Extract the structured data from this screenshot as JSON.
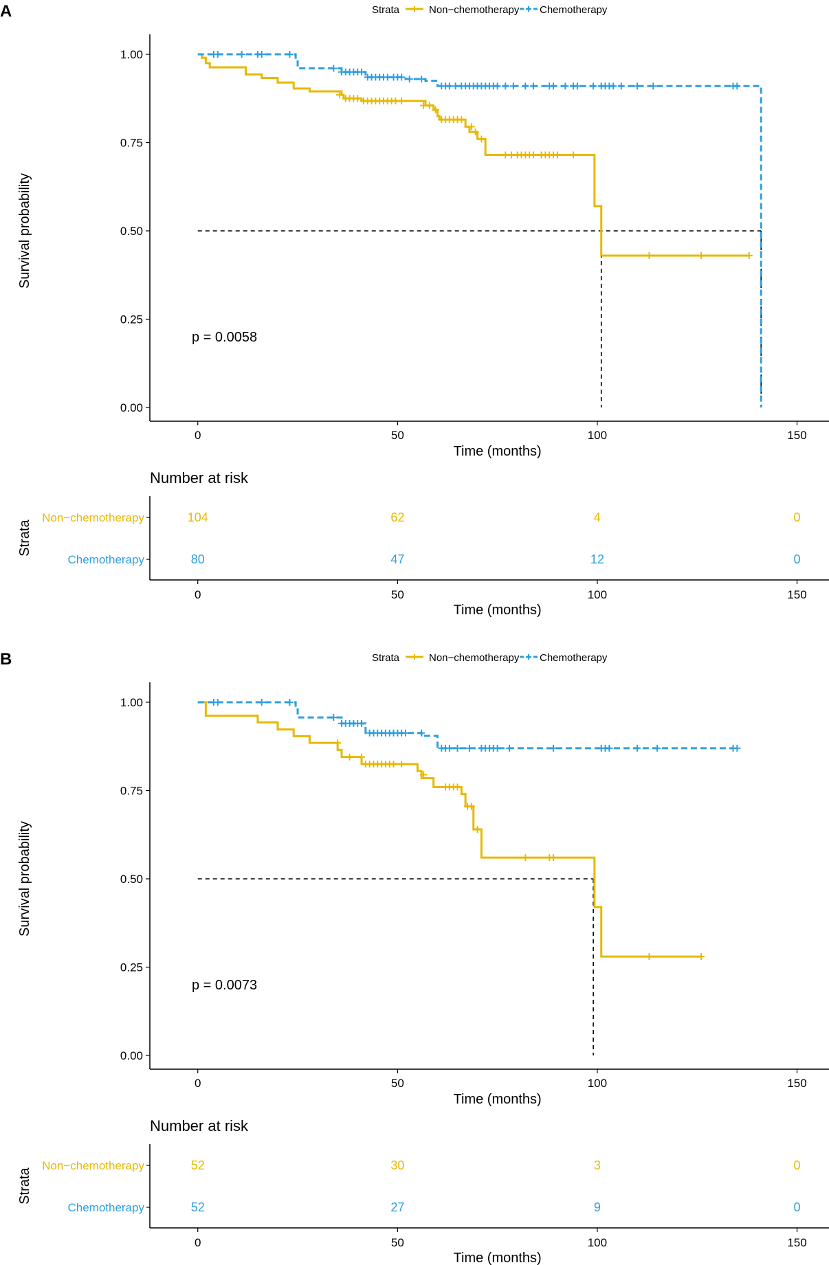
{
  "chart_data": [
    {
      "type": "line",
      "panel_label": "A",
      "legend": {
        "title": "Strata",
        "entries": [
          "Non−chemotherapy",
          "Chemotherapy"
        ],
        "placement": "top-center"
      },
      "xlabel": "Time (months)",
      "ylabel": "Survival probability",
      "xlim": [
        -12,
        158
      ],
      "ylim": [
        0,
        1
      ],
      "xticks": [
        "0",
        "50",
        "100",
        "150"
      ],
      "xtick_values": [
        0,
        50,
        100,
        150
      ],
      "yticks": [
        "0.00",
        "0.25",
        "0.50",
        "0.75",
        "1.00"
      ],
      "ytick_values": [
        0,
        0.25,
        0.5,
        0.75,
        1
      ],
      "pvalue": "p = 0.0058",
      "median_lines": [
        {
          "x1": 0,
          "x2": 141,
          "y": 0.5
        },
        {
          "x": 101,
          "y": 0.5
        },
        {
          "x": 141,
          "y": 0.5
        }
      ],
      "series": [
        {
          "name": "Non−chemotherapy",
          "color": "#E7B800",
          "dash": "solid",
          "steps": [
            [
              0,
              1.0
            ],
            [
              1,
              0.99
            ],
            [
              2,
              0.975
            ],
            [
              3,
              0.963
            ],
            [
              12,
              0.943
            ],
            [
              16,
              0.933
            ],
            [
              20,
              0.92
            ],
            [
              24,
              0.903
            ],
            [
              28,
              0.895
            ],
            [
              36,
              0.885
            ],
            [
              36.5,
              0.875
            ],
            [
              41,
              0.868
            ],
            [
              57,
              0.855
            ],
            [
              59,
              0.843
            ],
            [
              60,
              0.825
            ],
            [
              60.5,
              0.815
            ],
            [
              67,
              0.795
            ],
            [
              68,
              0.78
            ],
            [
              70,
              0.76
            ],
            [
              72,
              0.715
            ],
            [
              99,
              0.715
            ],
            [
              99.3,
              0.57
            ],
            [
              101,
              0.43
            ],
            [
              138,
              0.43
            ]
          ],
          "censors": [
            [
              35.5,
              0.885
            ],
            [
              37,
              0.875
            ],
            [
              38,
              0.875
            ],
            [
              39,
              0.875
            ],
            [
              40,
              0.875
            ],
            [
              41.5,
              0.868
            ],
            [
              42.5,
              0.868
            ],
            [
              43.5,
              0.868
            ],
            [
              44.5,
              0.868
            ],
            [
              45.5,
              0.868
            ],
            [
              46.5,
              0.868
            ],
            [
              47.5,
              0.868
            ],
            [
              48.5,
              0.868
            ],
            [
              49.5,
              0.868
            ],
            [
              51,
              0.868
            ],
            [
              56.5,
              0.855
            ],
            [
              58,
              0.855
            ],
            [
              59.5,
              0.843
            ],
            [
              61,
              0.815
            ],
            [
              62,
              0.815
            ],
            [
              63,
              0.815
            ],
            [
              64,
              0.815
            ],
            [
              65,
              0.815
            ],
            [
              66,
              0.815
            ],
            [
              68.5,
              0.795
            ],
            [
              69.5,
              0.78
            ],
            [
              71,
              0.76
            ],
            [
              77,
              0.715
            ],
            [
              78.5,
              0.715
            ],
            [
              80,
              0.715
            ],
            [
              81,
              0.715
            ],
            [
              82,
              0.715
            ],
            [
              83,
              0.715
            ],
            [
              84,
              0.715
            ],
            [
              86,
              0.715
            ],
            [
              87,
              0.715
            ],
            [
              88,
              0.715
            ],
            [
              89,
              0.715
            ],
            [
              90,
              0.715
            ],
            [
              94,
              0.715
            ],
            [
              113,
              0.43
            ],
            [
              126,
              0.43
            ],
            [
              138,
              0.43
            ]
          ]
        },
        {
          "name": "Chemotherapy",
          "color": "#2E9FDF",
          "dash": "dashed",
          "steps": [
            [
              0,
              1.0
            ],
            [
              24,
              1.0
            ],
            [
              24.5,
              0.985
            ],
            [
              25,
              0.96
            ],
            [
              36,
              0.95
            ],
            [
              42,
              0.935
            ],
            [
              52,
              0.93
            ],
            [
              57,
              0.925
            ],
            [
              60,
              0.91
            ],
            [
              141,
              0.91
            ],
            [
              141,
              0.0
            ]
          ],
          "censors": [
            [
              4,
              1.0
            ],
            [
              5,
              1.0
            ],
            [
              11,
              1.0
            ],
            [
              15,
              1.0
            ],
            [
              16,
              1.0
            ],
            [
              23,
              1.0
            ],
            [
              34,
              0.96
            ],
            [
              36,
              0.95
            ],
            [
              37,
              0.95
            ],
            [
              38,
              0.95
            ],
            [
              39,
              0.95
            ],
            [
              40,
              0.95
            ],
            [
              41,
              0.95
            ],
            [
              42.5,
              0.935
            ],
            [
              43.5,
              0.935
            ],
            [
              44.5,
              0.935
            ],
            [
              45.5,
              0.935
            ],
            [
              46.5,
              0.935
            ],
            [
              47.5,
              0.935
            ],
            [
              49,
              0.935
            ],
            [
              50,
              0.935
            ],
            [
              51,
              0.935
            ],
            [
              53,
              0.93
            ],
            [
              56,
              0.93
            ],
            [
              61,
              0.91
            ],
            [
              62,
              0.91
            ],
            [
              63,
              0.91
            ],
            [
              64.5,
              0.91
            ],
            [
              66,
              0.91
            ],
            [
              67,
              0.91
            ],
            [
              68,
              0.91
            ],
            [
              69,
              0.91
            ],
            [
              70,
              0.91
            ],
            [
              71,
              0.91
            ],
            [
              72,
              0.91
            ],
            [
              73,
              0.91
            ],
            [
              74,
              0.91
            ],
            [
              75,
              0.91
            ],
            [
              77,
              0.91
            ],
            [
              79,
              0.91
            ],
            [
              82,
              0.91
            ],
            [
              84,
              0.91
            ],
            [
              88,
              0.91
            ],
            [
              89,
              0.91
            ],
            [
              92,
              0.91
            ],
            [
              94,
              0.91
            ],
            [
              95,
              0.91
            ],
            [
              99,
              0.91
            ],
            [
              101,
              0.91
            ],
            [
              102,
              0.91
            ],
            [
              103,
              0.91
            ],
            [
              104,
              0.91
            ],
            [
              106,
              0.91
            ],
            [
              110,
              0.91
            ],
            [
              114,
              0.91
            ],
            [
              134,
              0.91
            ],
            [
              135,
              0.91
            ]
          ]
        }
      ],
      "risk_table": {
        "title": "Number at risk",
        "strata_label": "Strata",
        "time_points": [
          0,
          50,
          100,
          150
        ],
        "rows": [
          {
            "label": "Non−chemotherapy",
            "color": "#E7B800",
            "values": [
              "104",
              "62",
              "4",
              "0"
            ]
          },
          {
            "label": "Chemotherapy",
            "color": "#2E9FDF",
            "values": [
              "80",
              "47",
              "12",
              "0"
            ]
          }
        ]
      }
    },
    {
      "type": "line",
      "panel_label": "B",
      "legend": {
        "title": "Strata",
        "entries": [
          "Non−chemotherapy",
          "Chemotherapy"
        ],
        "placement": "top-center"
      },
      "xlabel": "Time (months)",
      "ylabel": "Survival probability",
      "xlim": [
        -12,
        158
      ],
      "ylim": [
        0,
        1
      ],
      "xticks": [
        "0",
        "50",
        "100",
        "150"
      ],
      "xtick_values": [
        0,
        50,
        100,
        150
      ],
      "yticks": [
        "0.00",
        "0.25",
        "0.50",
        "0.75",
        "1.00"
      ],
      "ytick_values": [
        0,
        0.25,
        0.5,
        0.75,
        1
      ],
      "pvalue": "p = 0.0073",
      "median_lines": [
        {
          "x1": 0,
          "x2": 99,
          "y": 0.5
        },
        {
          "x": 99,
          "y": 0.5
        }
      ],
      "series": [
        {
          "name": "Non−chemotherapy",
          "color": "#E7B800",
          "dash": "solid",
          "steps": [
            [
              0,
              1.0
            ],
            [
              2,
              0.962
            ],
            [
              15,
              0.943
            ],
            [
              20,
              0.923
            ],
            [
              24,
              0.904
            ],
            [
              28,
              0.885
            ],
            [
              35,
              0.865
            ],
            [
              36,
              0.845
            ],
            [
              41,
              0.825
            ],
            [
              55,
              0.805
            ],
            [
              56,
              0.785
            ],
            [
              59,
              0.76
            ],
            [
              66,
              0.74
            ],
            [
              67,
              0.705
            ],
            [
              69,
              0.64
            ],
            [
              71,
              0.56
            ],
            [
              99,
              0.56
            ],
            [
              99.3,
              0.42
            ],
            [
              101,
              0.28
            ],
            [
              126,
              0.28
            ]
          ],
          "censors": [
            [
              35,
              0.885
            ],
            [
              38,
              0.845
            ],
            [
              41,
              0.845
            ],
            [
              42,
              0.825
            ],
            [
              43,
              0.825
            ],
            [
              44,
              0.825
            ],
            [
              45,
              0.825
            ],
            [
              46,
              0.825
            ],
            [
              47,
              0.825
            ],
            [
              48,
              0.825
            ],
            [
              49,
              0.825
            ],
            [
              51,
              0.825
            ],
            [
              56.5,
              0.795
            ],
            [
              62,
              0.76
            ],
            [
              63,
              0.76
            ],
            [
              64,
              0.76
            ],
            [
              65,
              0.76
            ],
            [
              67.5,
              0.705
            ],
            [
              68.5,
              0.705
            ],
            [
              70,
              0.64
            ],
            [
              82,
              0.56
            ],
            [
              88,
              0.56
            ],
            [
              89,
              0.56
            ],
            [
              113,
              0.28
            ],
            [
              126,
              0.28
            ]
          ]
        },
        {
          "name": "Chemotherapy",
          "color": "#2E9FDF",
          "dash": "dashed",
          "steps": [
            [
              0,
              1.0
            ],
            [
              24,
              1.0
            ],
            [
              24.5,
              0.985
            ],
            [
              25,
              0.957
            ],
            [
              36,
              0.94
            ],
            [
              42,
              0.913
            ],
            [
              56,
              0.905
            ],
            [
              60,
              0.87
            ],
            [
              134,
              0.87
            ]
          ],
          "censors": [
            [
              4,
              1.0
            ],
            [
              5,
              1.0
            ],
            [
              16,
              1.0
            ],
            [
              23,
              1.0
            ],
            [
              34,
              0.957
            ],
            [
              36,
              0.94
            ],
            [
              37,
              0.94
            ],
            [
              38,
              0.94
            ],
            [
              39,
              0.94
            ],
            [
              40,
              0.94
            ],
            [
              41,
              0.94
            ],
            [
              43,
              0.913
            ],
            [
              44,
              0.913
            ],
            [
              45,
              0.913
            ],
            [
              46,
              0.913
            ],
            [
              47,
              0.913
            ],
            [
              48,
              0.913
            ],
            [
              49,
              0.913
            ],
            [
              50,
              0.913
            ],
            [
              51,
              0.913
            ],
            [
              52,
              0.913
            ],
            [
              56,
              0.913
            ],
            [
              61,
              0.87
            ],
            [
              62,
              0.87
            ],
            [
              63,
              0.87
            ],
            [
              65,
              0.87
            ],
            [
              68,
              0.87
            ],
            [
              71,
              0.87
            ],
            [
              72,
              0.87
            ],
            [
              73,
              0.87
            ],
            [
              74,
              0.87
            ],
            [
              75,
              0.87
            ],
            [
              78,
              0.87
            ],
            [
              89,
              0.87
            ],
            [
              101,
              0.87
            ],
            [
              102,
              0.87
            ],
            [
              103,
              0.87
            ],
            [
              110,
              0.87
            ],
            [
              115,
              0.87
            ],
            [
              134,
              0.87
            ],
            [
              135,
              0.87
            ]
          ]
        }
      ],
      "risk_table": {
        "title": "Number at risk",
        "strata_label": "Strata",
        "time_points": [
          0,
          50,
          100,
          150
        ],
        "rows": [
          {
            "label": "Non−chemotherapy",
            "color": "#E7B800",
            "values": [
              "52",
              "30",
              "3",
              "0"
            ]
          },
          {
            "label": "Chemotherapy",
            "color": "#2E9FDF",
            "values": [
              "52",
              "27",
              "9",
              "0"
            ]
          }
        ]
      }
    }
  ]
}
